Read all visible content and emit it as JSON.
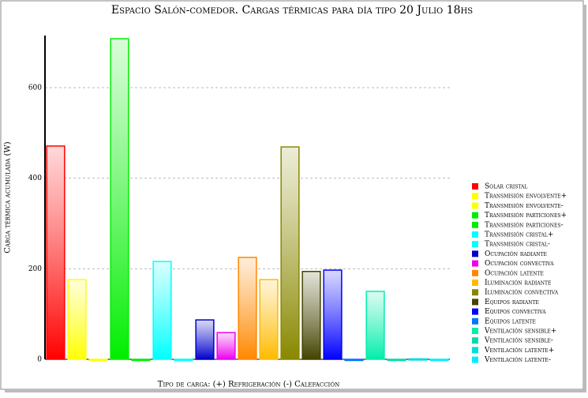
{
  "chart_data": {
    "type": "bar",
    "title": "Espacio Salón-comedor. Cargas térmicas para día tipo 20 Julio 18hs",
    "y_label": "Carga térmica acumulada (W)",
    "x_label": "Tipo de carga: (+) Refrigeración (-) Calefacción",
    "categories": [
      "Solar cristal",
      "Transmisión envolvente+",
      "Transmisión envolvente-",
      "Transmisión particiones+",
      "Transmisión particiones-",
      "Transmisión cristal+",
      "Transmisión cristal-",
      "Ocupación radiante",
      "Ocupación convectiva",
      "Ocupación latente",
      "Iluminación radiante",
      "Iluminación convectiva",
      "Equipos radiante",
      "Equipos convectiva",
      "Equipos latente",
      "Ventilación sensible+",
      "Ventilación sensible-",
      "Ventilación latente+",
      "Ventilación latente-"
    ],
    "values": [
      471,
      176,
      0,
      708,
      0,
      216,
      0,
      87,
      59,
      225,
      176,
      469,
      194,
      197,
      0,
      150,
      0,
      1,
      0
    ],
    "colors": [
      "#ff0000",
      "#ffff00",
      "#ffff00",
      "#00ee00",
      "#00ee00",
      "#00ffff",
      "#00ffff",
      "#0000cc",
      "#ee00ee",
      "#ff8800",
      "#ffbb00",
      "#888800",
      "#444400",
      "#0000ff",
      "#0077ff",
      "#00eeaa",
      "#00ddaa",
      "#00dddd",
      "#00eeff"
    ],
    "ylim": [
      0,
      715
    ],
    "yticks": [
      0,
      200,
      400,
      600
    ],
    "grid": true
  }
}
